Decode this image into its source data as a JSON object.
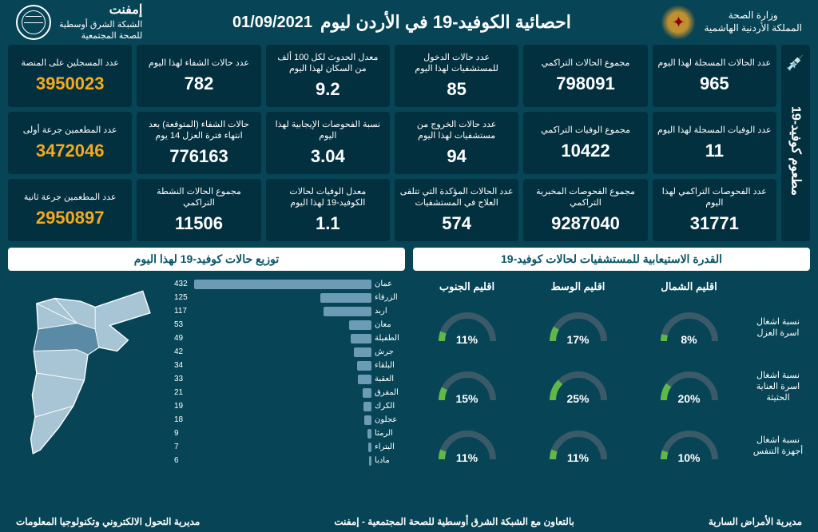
{
  "header": {
    "org_name": "إمفنت",
    "org_sub1": "الشبكة الشرق أوسطية",
    "org_sub2": "للصحة المجتمعية",
    "title": "احصائية الكوفيد-19 في الأردن ليوم",
    "date": "01/09/2021",
    "ministry1": "وزارة الصحة",
    "ministry2": "المملكة الأردنية الهاشمية"
  },
  "stats_layout": [
    [
      "new_cases",
      "total_cases",
      "admissions",
      "incidence",
      "recoveries",
      "registered"
    ],
    [
      "deaths_today",
      "total_deaths",
      "discharges",
      "positivity",
      "expected_recoveries",
      "dose1"
    ],
    [
      "total_tests",
      "total_lab_tests",
      "in_hospital",
      "death_rate",
      "active_cases",
      "dose2"
    ]
  ],
  "stats": {
    "new_cases": {
      "label": "عدد الحالات المسجلة لهذا اليوم",
      "value": "965"
    },
    "total_cases": {
      "label": "مجموع الحالات التراكمي",
      "value": "798091"
    },
    "admissions": {
      "label": "عدد حالات الدخول للمستشفيات لهذا اليوم",
      "value": "85"
    },
    "incidence": {
      "label": "معدل الحدوث لكل 100 ألف من السكان لهذا اليوم",
      "value": "9.2"
    },
    "recoveries": {
      "label": "عدد حالات الشفاء لهذا اليوم",
      "value": "782"
    },
    "registered": {
      "label": "عدد المسجلين على المنصة",
      "value": "3950023",
      "accent": true
    },
    "deaths_today": {
      "label": "عدد الوفيات المسجلة لهذا اليوم",
      "value": "11"
    },
    "total_deaths": {
      "label": "مجموع الوفيات التراكمي",
      "value": "10422"
    },
    "discharges": {
      "label": "عدد حالات الخروج من مستشفيات لهذا اليوم",
      "value": "94"
    },
    "positivity": {
      "label": "نسبة الفحوصات الإيجابية لهذا اليوم",
      "value": "3.04"
    },
    "expected_recoveries": {
      "label": "حالات الشفاء (المتوقعة) بعد انتهاء فترة العزل 14 يوم",
      "value": "776163"
    },
    "dose1": {
      "label": "عدد المطعمين جرعة أولى",
      "value": "3472046",
      "accent": true
    },
    "total_tests": {
      "label": "عدد الفحوصات التراكمي لهذا اليوم",
      "value": "31771"
    },
    "total_lab_tests": {
      "label": "مجموع الفحوصات المخبرية التراكمي",
      "value": "9287040"
    },
    "in_hospital": {
      "label": "عدد الحالات المؤكدة التي تتلقى العلاج في المستشفيات",
      "value": "574"
    },
    "death_rate": {
      "label": "معدل الوفيات لحالات الكوفيد-19 لهذا اليوم",
      "value": "1.1"
    },
    "active_cases": {
      "label": "مجموع الحالات النشطة التراكمي",
      "value": "11506"
    },
    "dose2": {
      "label": "عدد المطعمين جرعة ثانية",
      "value": "2950897",
      "accent": true
    }
  },
  "vaccine_label": "مطعوم كوفيد-19",
  "distribution": {
    "title": "توزيع حالات كوفيد-19 لهذا اليوم",
    "max": 432,
    "bar_color": "#6b9bb5",
    "bars": [
      {
        "label": "عمان",
        "value": 432
      },
      {
        "label": "الزرقاء",
        "value": 125
      },
      {
        "label": "اربد",
        "value": 117
      },
      {
        "label": "معان",
        "value": 53
      },
      {
        "label": "الطفيلة",
        "value": 49
      },
      {
        "label": "جرش",
        "value": 42
      },
      {
        "label": "البلقاء",
        "value": 34
      },
      {
        "label": "العقبة",
        "value": 33
      },
      {
        "label": "المفرق",
        "value": 21
      },
      {
        "label": "الكرك",
        "value": 19
      },
      {
        "label": "عجلون",
        "value": 18
      },
      {
        "label": "الرمثا",
        "value": 9
      },
      {
        "label": "البتراء",
        "value": 7
      },
      {
        "label": "مادبا",
        "value": 6
      }
    ]
  },
  "capacity": {
    "title": "القدرة الاستيعابية للمستشفيات لحالات كوفيد-19",
    "regions": [
      "اقليم الجنوب",
      "اقليم الوسط",
      "اقليم الشمال"
    ],
    "gauge_track": "#3a5a68",
    "gauge_fill": "#5fb848",
    "rows": [
      {
        "label": "نسبة اشغال اسرة العزل",
        "values": [
          11,
          17,
          8
        ]
      },
      {
        "label": "نسبة اشغال اسرة العناية الحثيثة",
        "values": [
          15,
          25,
          20
        ]
      },
      {
        "label": "نسبة اشغال أجهزة التنفس",
        "values": [
          11,
          11,
          10
        ]
      }
    ]
  },
  "footer": {
    "left": "مديرية التحول الالكتروني وتكنولوجيا المعلومات",
    "center": "بالتعاون مع الشبكة الشرق أوسطية للصحة المجتمعية - إمفنت",
    "right": "مديرية الأمراض السارية"
  },
  "colors": {
    "bg": "#064456",
    "card_bg": "#03303f",
    "accent": "#f5a91e",
    "map_fill": "#a8c5d5",
    "map_highlight": "#5a8aa5",
    "map_stroke": "#ffffff"
  }
}
